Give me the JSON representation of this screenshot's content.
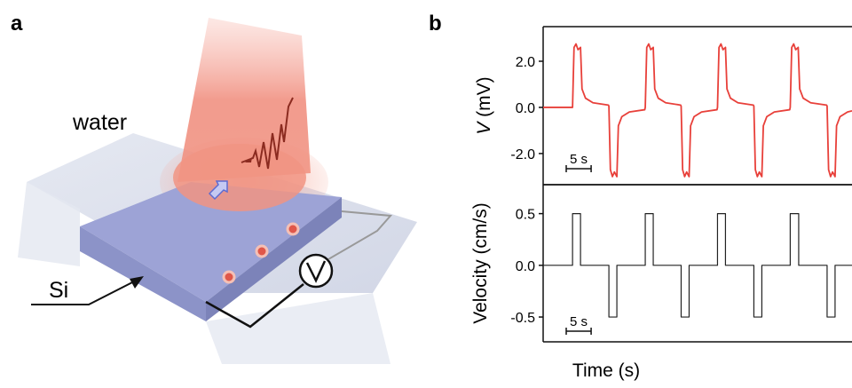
{
  "panels": [
    "a",
    "b"
  ],
  "illustration": {
    "medium": "water",
    "material": "Si"
  },
  "chart_data": [
    {
      "type": "line",
      "ylabel": {
        "symbol": "V",
        "unit": " (mV)"
      },
      "color": "#e8403a",
      "xlim": [
        0,
        62
      ],
      "ylim": [
        -3.35,
        3.5
      ],
      "yticks": [
        {
          "value": 2,
          "label": "2.0"
        },
        {
          "value": 0,
          "label": "0.0"
        },
        {
          "value": -2,
          "label": "-2.0"
        }
      ],
      "scale_bar": {
        "value": 5,
        "label": "5 s"
      },
      "x": [
        0,
        5.9,
        6.2,
        6.6,
        7.0,
        7.5,
        7.8,
        8.5,
        10.0,
        13.1,
        13.2,
        13.5,
        13.9,
        14.3,
        14.8,
        15.1,
        15.8,
        17.3,
        20.4,
        20.5,
        20.8,
        21.2,
        21.6,
        22.1,
        22.4,
        23.1,
        24.6,
        27.6,
        27.7,
        28.0,
        28.4,
        28.8,
        29.3,
        29.6,
        30.3,
        31.8,
        34.9,
        35.0,
        35.3,
        35.7,
        36.1,
        36.6,
        36.9,
        37.6,
        39.1,
        42.2,
        42.3,
        42.6,
        43.0,
        43.4,
        43.9,
        44.2,
        44.9,
        46.4,
        49.5,
        49.6,
        49.9,
        50.3,
        50.7,
        51.2,
        51.5,
        52.2,
        53.7,
        56.9,
        57.0,
        57.3,
        57.7,
        58.1,
        58.6,
        58.9,
        59.6,
        61.1,
        62
      ],
      "values": [
        0,
        0,
        2.6,
        2.75,
        2.5,
        2.6,
        0.8,
        0.4,
        0.2,
        0.1,
        0.05,
        -2.7,
        -3.0,
        -2.8,
        -3.0,
        -0.8,
        -0.4,
        -0.2,
        -0.1,
        0,
        2.6,
        2.75,
        2.5,
        2.6,
        0.8,
        0.4,
        0.2,
        0.1,
        0.05,
        -2.7,
        -3.0,
        -2.8,
        -3.0,
        -0.8,
        -0.4,
        -0.2,
        -0.1,
        0,
        2.6,
        2.75,
        2.5,
        2.6,
        0.8,
        0.4,
        0.2,
        0.1,
        0.05,
        -2.7,
        -3.0,
        -2.8,
        -3.0,
        -0.8,
        -0.4,
        -0.2,
        -0.1,
        0,
        2.6,
        2.75,
        2.5,
        2.6,
        0.8,
        0.4,
        0.2,
        0.1,
        0.05,
        -2.7,
        -3.0,
        -2.8,
        -3.0,
        -0.8,
        -0.4,
        -0.2,
        -0.15
      ]
    },
    {
      "type": "line",
      "ylabel": {
        "symbol": "Velocity",
        "unit": " (cm/s)"
      },
      "xlabel": "Time (s)",
      "color": "#222222",
      "xlim": [
        0,
        62
      ],
      "ylim": [
        -0.74,
        0.78
      ],
      "yticks": [
        0.5,
        {
          "value": 0,
          "label": "0.0"
        },
        -0.5
      ],
      "scale_bar": {
        "value": 5,
        "label": "5 s"
      },
      "x": [
        0,
        5.9,
        5.9,
        7.5,
        7.5,
        13.2,
        13.2,
        14.8,
        14.8,
        20.5,
        20.5,
        22.1,
        22.1,
        27.7,
        27.7,
        29.3,
        29.3,
        35.0,
        35.0,
        36.6,
        36.6,
        42.3,
        42.3,
        43.9,
        43.9,
        49.6,
        49.6,
        51.3,
        51.3,
        57.0,
        57.0,
        58.6,
        58.6,
        62
      ],
      "values": [
        0,
        0,
        0.5,
        0.5,
        0,
        0,
        -0.5,
        -0.5,
        0,
        0,
        0.5,
        0.5,
        0,
        0,
        -0.5,
        -0.5,
        0,
        0,
        0.5,
        0.5,
        0,
        0,
        -0.5,
        -0.5,
        0,
        0,
        0.5,
        0.5,
        0,
        0,
        -0.5,
        -0.5,
        0,
        0
      ]
    }
  ]
}
